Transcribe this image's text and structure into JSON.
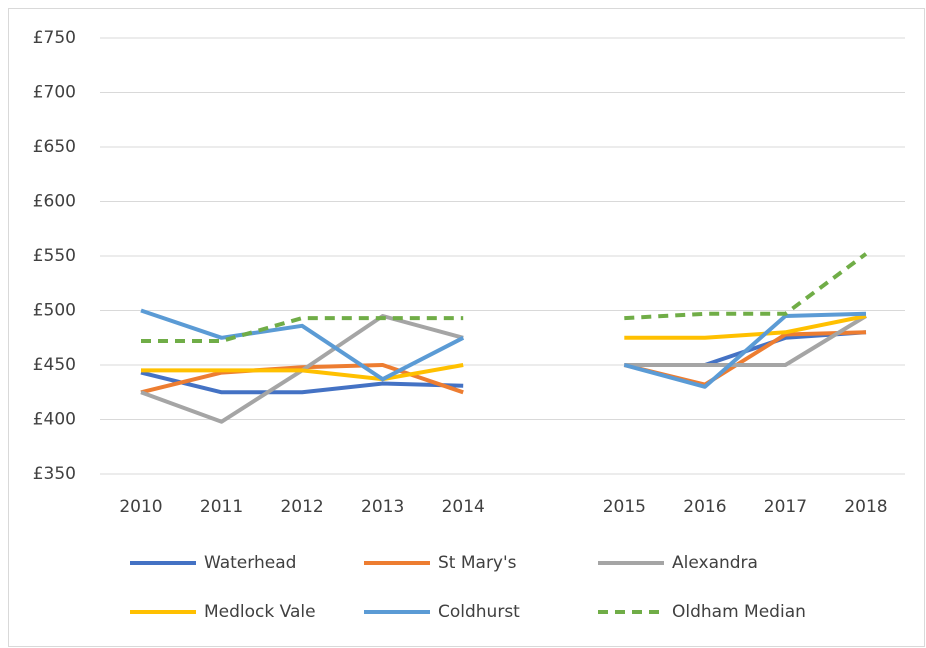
{
  "chart_data": {
    "type": "line",
    "categories": [
      "2010",
      "2011",
      "2012",
      "2013",
      "2014",
      null,
      "2015",
      "2016",
      "2017",
      "2018"
    ],
    "series": [
      {
        "name": "Waterhead",
        "color": "#4472c4",
        "values": [
          443,
          425,
          425,
          433,
          431,
          null,
          450,
          450,
          475,
          480
        ]
      },
      {
        "name": "St Mary's",
        "color": "#ed7d31",
        "values": [
          425,
          443,
          448,
          450,
          425,
          null,
          450,
          432,
          478,
          480
        ]
      },
      {
        "name": "Alexandra",
        "color": "#a5a5a5",
        "values": [
          425,
          398,
          445,
          495,
          475,
          null,
          450,
          450,
          450,
          495
        ]
      },
      {
        "name": "Medlock Vale",
        "color": "#ffc000",
        "values": [
          445,
          445,
          445,
          437,
          450,
          null,
          475,
          475,
          480,
          495
        ]
      },
      {
        "name": "Coldhurst",
        "color": "#5b9bd5",
        "values": [
          500,
          475,
          486,
          437,
          475,
          null,
          450,
          430,
          495,
          497
        ]
      },
      {
        "name": "Oldham Median",
        "color": "#70ad47",
        "line_style": "dashed",
        "values": [
          472,
          472,
          493,
          493,
          493,
          null,
          493,
          497,
          497,
          552
        ]
      }
    ],
    "ylim": [
      350,
      750
    ],
    "yticks": [
      {
        "value": 350,
        "label": "£350"
      },
      {
        "value": 400,
        "label": "£400"
      },
      {
        "value": 450,
        "label": "£450"
      },
      {
        "value": 500,
        "label": "£500"
      },
      {
        "value": 550,
        "label": "£550"
      },
      {
        "value": 600,
        "label": "£600"
      },
      {
        "value": 650,
        "label": "£650"
      },
      {
        "value": 700,
        "label": "£700"
      },
      {
        "value": 750,
        "label": "£750"
      }
    ],
    "grid": true,
    "legend": "bottom"
  }
}
